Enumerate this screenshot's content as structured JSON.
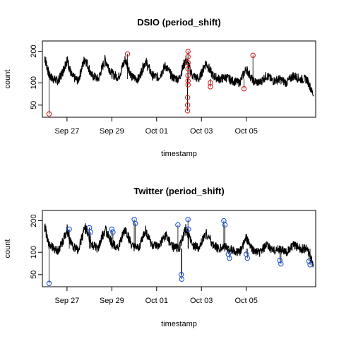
{
  "chart_data": [
    {
      "type": "line",
      "title": "DSIO (period_shift)",
      "xlabel": "timestamp",
      "ylabel": "count",
      "x_ticks": [
        "Sep 27",
        "Sep 29",
        "Oct 01",
        "Oct 03",
        "Oct 05"
      ],
      "y_ticks": [
        50,
        100,
        200
      ],
      "ylim": [
        30,
        240
      ],
      "y_scale": "sqrt",
      "xlim_days": [
        -1.6,
        10.6
      ],
      "grid": false,
      "legend": "none",
      "marker_color": "#dd2222",
      "series": [
        {
          "color": "#000000",
          "x_days": [
            -1.5,
            -1.3,
            -1.1,
            -0.9,
            -0.7,
            -0.5,
            -0.3,
            0,
            0.3,
            0.6,
            0.9,
            1.2,
            1.5,
            1.8,
            2.1,
            2.4,
            2.7,
            3,
            3.3,
            3.6,
            3.9,
            4.2,
            4.5,
            4.8,
            5.1,
            5.4,
            5.7,
            6,
            6.3,
            6.6,
            6.9,
            7.2,
            7.5,
            7.8,
            8.1,
            8.4,
            8.7,
            9,
            9.3,
            9.6,
            9.9,
            10.2,
            10.5
          ],
          "y": [
            180,
            120,
            110,
            105,
            130,
            170,
            120,
            105,
            175,
            120,
            110,
            170,
            125,
            115,
            170,
            115,
            110,
            165,
            120,
            115,
            150,
            115,
            110,
            170,
            120,
            110,
            160,
            120,
            110,
            115,
            105,
            100,
            140,
            105,
            100,
            120,
            105,
            110,
            100,
            120,
            110,
            110,
            70
          ]
        }
      ],
      "anomalies": [
        {
          "x_day": -1.3,
          "y": 35
        },
        {
          "x_day": 2.2,
          "y": 190
        },
        {
          "x_day": 4.9,
          "y": 200
        },
        {
          "x_day": 4.9,
          "y": 180
        },
        {
          "x_day": 4.9,
          "y": 160
        },
        {
          "x_day": 4.9,
          "y": 140
        },
        {
          "x_day": 4.9,
          "y": 120
        },
        {
          "x_day": 4.9,
          "y": 105
        },
        {
          "x_day": 4.9,
          "y": 95
        },
        {
          "x_day": 4.88,
          "y": 65
        },
        {
          "x_day": 4.88,
          "y": 50
        },
        {
          "x_day": 4.88,
          "y": 40
        },
        {
          "x_day": 5.9,
          "y": 100
        },
        {
          "x_day": 5.9,
          "y": 90
        },
        {
          "x_day": 7.4,
          "y": 85
        },
        {
          "x_day": 7.8,
          "y": 185
        }
      ]
    },
    {
      "type": "line",
      "title": "Twitter (period_shift)",
      "xlabel": "timestamp",
      "ylabel": "count",
      "x_ticks": [
        "Sep 27",
        "Sep 29",
        "Oct 01",
        "Oct 03",
        "Oct 05"
      ],
      "y_ticks": [
        50,
        100,
        200
      ],
      "ylim": [
        30,
        240
      ],
      "y_scale": "sqrt",
      "xlim_days": [
        -1.6,
        10.6
      ],
      "grid": false,
      "legend": "none",
      "marker_color": "#2255dd",
      "series": [
        {
          "color": "#000000",
          "x_days": [
            -1.5,
            -1.3,
            -1.1,
            -0.9,
            -0.7,
            -0.5,
            -0.3,
            0,
            0.3,
            0.6,
            0.9,
            1.2,
            1.5,
            1.8,
            2.1,
            2.4,
            2.7,
            3,
            3.3,
            3.6,
            3.9,
            4.2,
            4.5,
            4.8,
            5.1,
            5.4,
            5.7,
            6,
            6.3,
            6.6,
            6.9,
            7.2,
            7.5,
            7.8,
            8.1,
            8.4,
            8.7,
            9,
            9.3,
            9.6,
            9.9,
            10.2,
            10.5
          ],
          "y": [
            180,
            120,
            110,
            105,
            130,
            170,
            120,
            105,
            175,
            120,
            110,
            170,
            125,
            115,
            170,
            115,
            110,
            165,
            120,
            115,
            150,
            115,
            110,
            170,
            120,
            110,
            160,
            120,
            110,
            115,
            105,
            100,
            140,
            105,
            100,
            120,
            105,
            110,
            100,
            120,
            110,
            110,
            70
          ]
        }
      ],
      "anomalies": [
        {
          "x_day": -1.3,
          "y": 35
        },
        {
          "x_day": -0.4,
          "y": 170
        },
        {
          "x_day": 0.5,
          "y": 175
        },
        {
          "x_day": 0.55,
          "y": 160
        },
        {
          "x_day": 1.5,
          "y": 170
        },
        {
          "x_day": 1.55,
          "y": 160
        },
        {
          "x_day": 2.5,
          "y": 205
        },
        {
          "x_day": 2.55,
          "y": 190
        },
        {
          "x_day": 4.45,
          "y": 185
        },
        {
          "x_day": 4.6,
          "y": 50
        },
        {
          "x_day": 4.62,
          "y": 42
        },
        {
          "x_day": 4.9,
          "y": 205
        },
        {
          "x_day": 4.92,
          "y": 170
        },
        {
          "x_day": 6.5,
          "y": 200
        },
        {
          "x_day": 6.55,
          "y": 185
        },
        {
          "x_day": 6.7,
          "y": 95
        },
        {
          "x_day": 6.75,
          "y": 85
        },
        {
          "x_day": 7.5,
          "y": 95
        },
        {
          "x_day": 7.55,
          "y": 85
        },
        {
          "x_day": 9.0,
          "y": 80
        },
        {
          "x_day": 9.05,
          "y": 72
        },
        {
          "x_day": 10.3,
          "y": 78
        },
        {
          "x_day": 10.35,
          "y": 70
        }
      ]
    }
  ]
}
